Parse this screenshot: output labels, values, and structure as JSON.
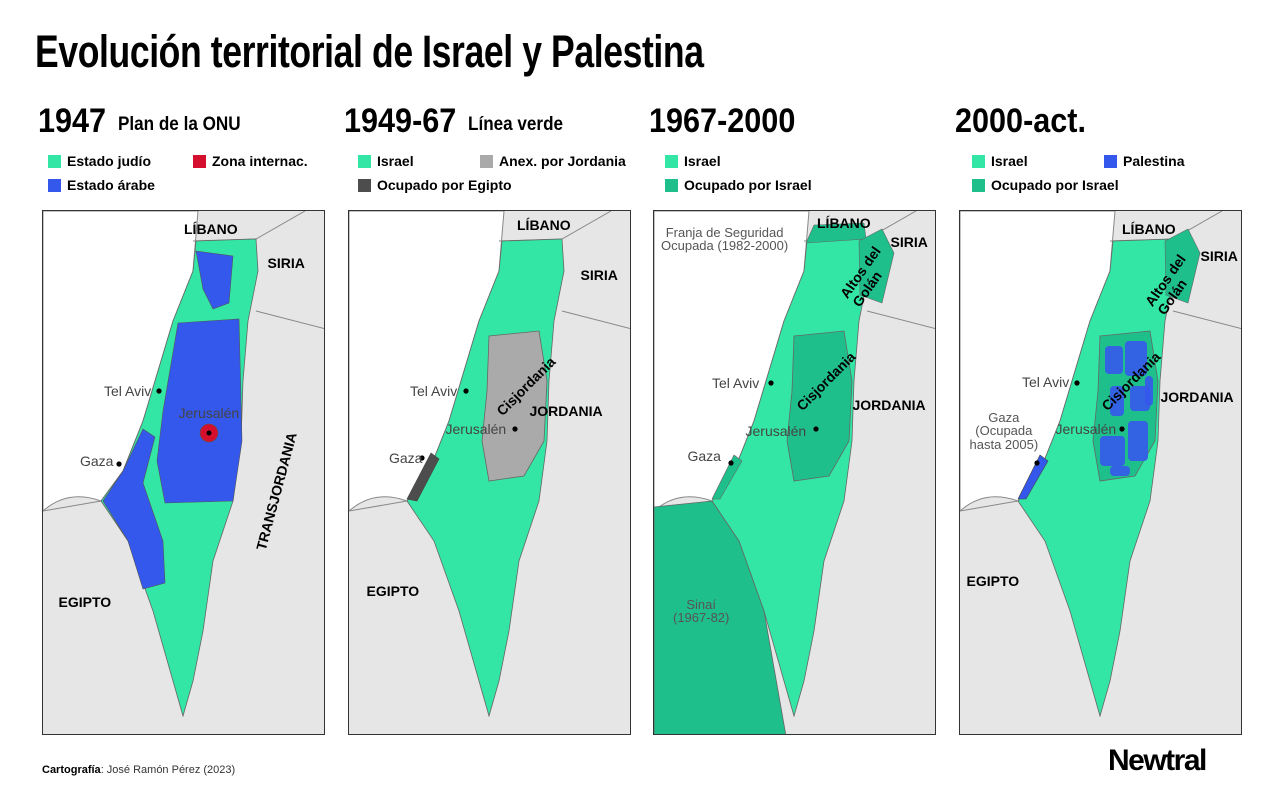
{
  "header": {
    "title": "Evolución territorial de Israel y Palestina"
  },
  "panels": [
    {
      "period": "1947",
      "subtitle": "Plan de la ONU",
      "legend": [
        {
          "label": "Estado judío",
          "color": "#33e6a6"
        },
        {
          "label": "Zona internac.",
          "color": "#d4102e"
        },
        {
          "label": "Estado árabe",
          "color": "#3558ec"
        }
      ],
      "labels": [
        "LÍBANO",
        "SIRIA",
        "Tel Aviv",
        "Jerusalén",
        "Gaza",
        "TRANSJORDANIA",
        "EGIPTO"
      ]
    },
    {
      "period": "1949-67",
      "subtitle": "Línea verde",
      "legend": [
        {
          "label": "Israel",
          "color": "#33e6a6"
        },
        {
          "label": "Anex. por Jordania",
          "color": "#aaaaaa"
        },
        {
          "label": "Ocupado por Egipto",
          "color": "#4d4d4d"
        }
      ],
      "labels": [
        "LÍBANO",
        "SIRIA",
        "Tel Aviv",
        "Cisjordania",
        "JORDANIA",
        "Jerusalén",
        "Gaza",
        "EGIPTO"
      ]
    },
    {
      "period": "1967-2000",
      "legend": [
        {
          "label": "Israel",
          "color": "#33e6a6"
        },
        {
          "label": "Ocupado por Israel",
          "color": "#1fbf8c"
        }
      ],
      "labels": [
        "Franja de Seguridad\nOcupada (1982-2000)",
        "LÍBANO",
        "SIRIA",
        "Altos del\nGolán",
        "Tel Aviv",
        "Cisjordania",
        "JORDANIA",
        "Jerusalén",
        "Gaza",
        "Sinaí\n(1967-82)"
      ]
    },
    {
      "period": "2000-act.",
      "legend": [
        {
          "label": "Israel",
          "color": "#33e6a6"
        },
        {
          "label": "Palestina",
          "color": "#3558ec"
        },
        {
          "label": "Ocupado por Israel",
          "color": "#1fbf8c"
        }
      ],
      "labels": [
        "LÍBANO",
        "SIRIA",
        "Altos del\nGolán",
        "Tel Aviv",
        "Gaza\n(Ocupada\nhasta 2005)",
        "Cisjordania",
        "JORDANIA",
        "Jerusalén",
        "EGIPTO"
      ]
    }
  ],
  "footer": {
    "credit_label": "Cartografía",
    "credit": ": José Ramón Pérez (2023)",
    "logo": "Newtral"
  }
}
